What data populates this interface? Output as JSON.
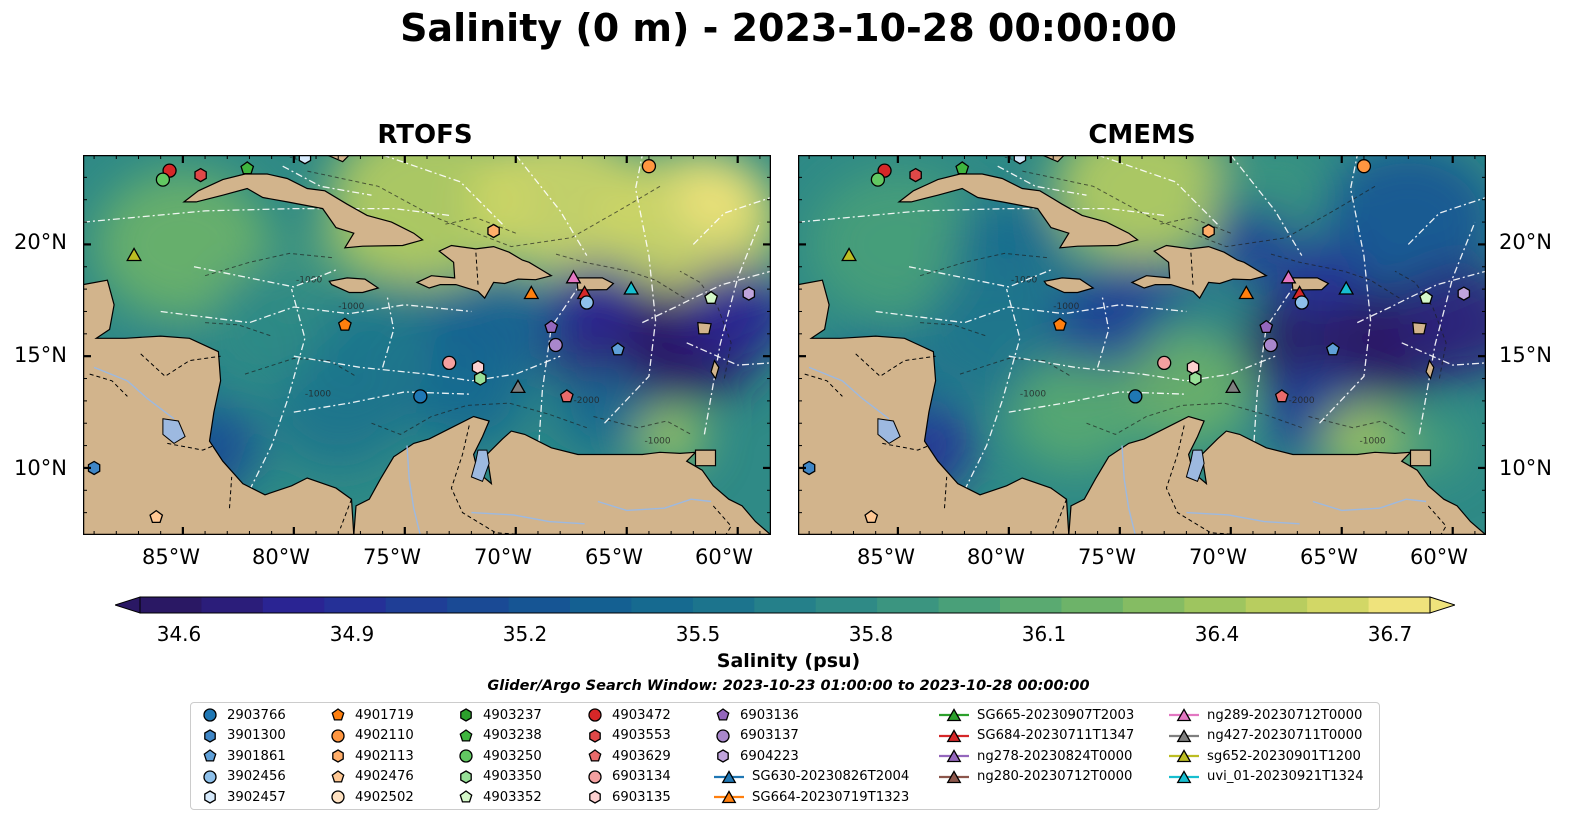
{
  "title": "Salinity (0 m) - 2023-10-28 00:00:00",
  "panels": [
    {
      "title": "RTOFS"
    },
    {
      "title": "CMEMS"
    }
  ],
  "axes": {
    "lat_labels": [
      "20°N",
      "15°N",
      "10°N"
    ],
    "lon_labels": [
      "85°W",
      "80°W",
      "75°W",
      "70°W",
      "65°W",
      "60°W"
    ]
  },
  "colorbar": {
    "label": "Salinity (psu)",
    "ticks": [
      "34.6",
      "34.9",
      "35.2",
      "35.5",
      "35.8",
      "36.1",
      "36.4",
      "36.7"
    ],
    "vmin": 34.6,
    "vmax": 36.7,
    "colormap": "haline",
    "extend": "both"
  },
  "search_window": "Glider/Argo Search Window: 2023-10-23 01:00:00 to 2023-10-28 00:00:00",
  "colors": {
    "land": "#d2b48c",
    "low_salinity": "#2a1b6b",
    "high_salinity": "#f3e57c",
    "contours": "#ffffff",
    "rivers_lakes": "#9db9e0"
  },
  "legend": [
    {
      "label": "2903766",
      "marker": "circle",
      "color": "#1f77b4"
    },
    {
      "label": "3901300",
      "marker": "hexagon",
      "color": "#3f86c6"
    },
    {
      "label": "3901861",
      "marker": "pentagon",
      "color": "#5fa0d8"
    },
    {
      "label": "3902456",
      "marker": "circle",
      "color": "#8ec0ea"
    },
    {
      "label": "3902457",
      "marker": "hexagon",
      "color": "#d6eafc"
    },
    {
      "label": "4901719",
      "marker": "pentagon",
      "color": "#ff7f0e"
    },
    {
      "label": "4902110",
      "marker": "circle",
      "color": "#ff9640"
    },
    {
      "label": "4902113",
      "marker": "hexagon",
      "color": "#ffae6a"
    },
    {
      "label": "4902476",
      "marker": "pentagon",
      "color": "#ffc894"
    },
    {
      "label": "4902502",
      "marker": "circle",
      "color": "#ffe2c2"
    },
    {
      "label": "4903237",
      "marker": "hexagon",
      "color": "#2ca02c"
    },
    {
      "label": "4903238",
      "marker": "pentagon",
      "color": "#3fb53f"
    },
    {
      "label": "4903250",
      "marker": "circle",
      "color": "#62c862"
    },
    {
      "label": "4903350",
      "marker": "hexagon",
      "color": "#98e098"
    },
    {
      "label": "4903352",
      "marker": "pentagon",
      "color": "#d4f7c8"
    },
    {
      "label": "4903472",
      "marker": "circle",
      "color": "#d62728"
    },
    {
      "label": "4903553",
      "marker": "hexagon",
      "color": "#e04848"
    },
    {
      "label": "4903629",
      "marker": "pentagon",
      "color": "#ea6b6b"
    },
    {
      "label": "6903134",
      "marker": "circle",
      "color": "#f4a0a0"
    },
    {
      "label": "6903135",
      "marker": "hexagon",
      "color": "#fcd0d0"
    },
    {
      "label": "6903136",
      "marker": "pentagon",
      "color": "#9467bd"
    },
    {
      "label": "6903137",
      "marker": "circle",
      "color": "#a987cc"
    },
    {
      "label": "6904223",
      "marker": "hexagon",
      "color": "#c0a4dc"
    },
    {
      "label": "SG630-20230826T2004",
      "marker": "triangle",
      "color": "#1f77b4"
    },
    {
      "label": "SG664-20230719T1323",
      "marker": "triangle",
      "color": "#ff7f0e"
    },
    {
      "label": "SG665-20230907T2003",
      "marker": "triangle",
      "color": "#2ca02c"
    },
    {
      "label": "SG684-20230711T1347",
      "marker": "triangle",
      "color": "#d62728"
    },
    {
      "label": "ng278-20230824T0000",
      "marker": "triangle",
      "color": "#9467bd"
    },
    {
      "label": "ng280-20230712T0000",
      "marker": "triangle",
      "color": "#8c564b"
    },
    {
      "label": "ng289-20230712T0000",
      "marker": "triangle",
      "color": "#e377c2"
    },
    {
      "label": "ng427-20230711T0000",
      "marker": "triangle",
      "color": "#7f7f7f"
    },
    {
      "label": "sg652-20230901T1200",
      "marker": "triangle",
      "color": "#bcbd22"
    },
    {
      "label": "uvi_01-20230921T1324",
      "marker": "triangle",
      "color": "#17becf"
    }
  ],
  "observations": [
    {
      "id": "4903472",
      "lon": -85.6,
      "lat": 23.3
    },
    {
      "id": "4903553",
      "lon": -84.2,
      "lat": 23.1
    },
    {
      "id": "4903238",
      "lon": -82.1,
      "lat": 23.4
    },
    {
      "id": "3902457",
      "lon": -79.5,
      "lat": 23.9
    },
    {
      "id": "4903250",
      "lon": -85.9,
      "lat": 22.9
    },
    {
      "id": "4902110",
      "lon": -64.0,
      "lat": 23.5
    },
    {
      "id": "sg652-20230901T1200",
      "lon": -87.2,
      "lat": 19.5
    },
    {
      "id": "4902113",
      "lon": -71.0,
      "lat": 20.6
    },
    {
      "id": "ng289-20230712T0000",
      "lon": -67.4,
      "lat": 18.5
    },
    {
      "id": "SG684-20230711T1347",
      "lon": -66.9,
      "lat": 17.8
    },
    {
      "id": "SG664-20230719T1323",
      "lon": -69.3,
      "lat": 17.8
    },
    {
      "id": "3902456",
      "lon": -66.8,
      "lat": 17.4
    },
    {
      "id": "uvi_01-20230921T1324",
      "lon": -64.8,
      "lat": 18.0
    },
    {
      "id": "4903352",
      "lon": -61.2,
      "lat": 17.6
    },
    {
      "id": "6904223",
      "lon": -59.5,
      "lat": 17.8
    },
    {
      "id": "4901719",
      "lon": -77.7,
      "lat": 16.4
    },
    {
      "id": "6903136",
      "lon": -68.4,
      "lat": 16.3
    },
    {
      "id": "6903137",
      "lon": -68.2,
      "lat": 15.5
    },
    {
      "id": "3901861",
      "lon": -65.4,
      "lat": 15.3
    },
    {
      "id": "6903134",
      "lon": -73.0,
      "lat": 14.7
    },
    {
      "id": "6903135",
      "lon": -71.7,
      "lat": 14.5
    },
    {
      "id": "4903350",
      "lon": -71.6,
      "lat": 14.0
    },
    {
      "id": "ng427-20230711T0000",
      "lon": -69.9,
      "lat": 13.6
    },
    {
      "id": "2903766",
      "lon": -74.3,
      "lat": 13.2
    },
    {
      "id": "4903629",
      "lon": -67.7,
      "lat": 13.2
    },
    {
      "id": "3901300",
      "lon": -89.0,
      "lat": 10.0
    },
    {
      "id": "4902476",
      "lon": -86.2,
      "lat": 7.8
    }
  ],
  "extent": {
    "lon_min": -89.5,
    "lon_max": -58.5,
    "lat_min": 7.0,
    "lat_max": 24.0
  }
}
